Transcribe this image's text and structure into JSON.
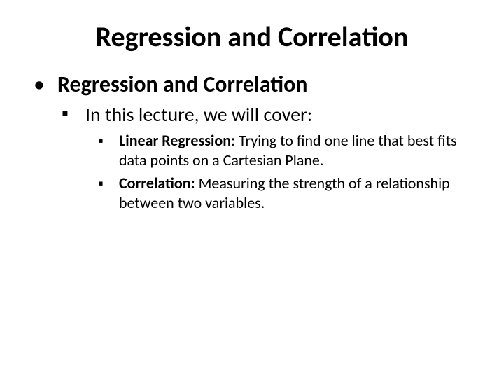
{
  "title": "Regression and Correlation",
  "lvl1": {
    "text": "Regression and Correlation"
  },
  "lvl2": {
    "text": "In this lecture, we will cover:"
  },
  "lvl3": [
    {
      "term": "Linear Regression:",
      "desc": " Trying to find one line that best fits data points on a Cartesian Plane."
    },
    {
      "term": "Correlation:",
      "desc": " Measuring the strength of a relationship between two variables."
    }
  ],
  "bullets": {
    "dot": "•",
    "square": "▪"
  },
  "style": {
    "background_color": "#ffffff",
    "text_color": "#000000",
    "font_family": "Calibri",
    "title_fontsize": 40,
    "title_fontweight": 700,
    "lvl1_fontsize": 32,
    "lvl1_fontweight": 700,
    "lvl2_fontsize": 28,
    "lvl2_fontweight": 400,
    "lvl3_fontsize": 22,
    "lvl3_fontweight": 400,
    "lvl3_lineheight": 1.25,
    "slide_width": 720,
    "slide_height": 540
  }
}
